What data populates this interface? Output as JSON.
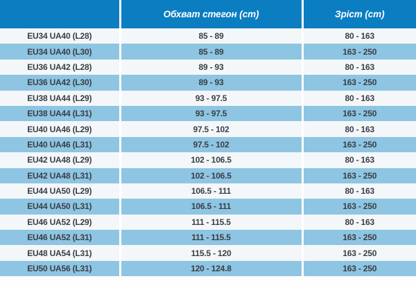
{
  "colors": {
    "header_bg": "#0b7dc1",
    "header_text": "#ffffff",
    "row_blue": "#8ec5e2",
    "row_white": "#f4f7f9",
    "text_dark": "#3a3e44",
    "separator": "#ffffff",
    "page_bg": "#fdfdfd"
  },
  "table": {
    "columns": [
      {
        "label": ""
      },
      {
        "label": "Обхват стегон (cm)"
      },
      {
        "label": "Зріст (cm)"
      }
    ],
    "rows": [
      {
        "size": "EU34 UA40 (L28)",
        "hips": "85 - 89",
        "height": "80 - 163"
      },
      {
        "size": "EU34 UA40 (L30)",
        "hips": "85 - 89",
        "height": "163 - 250"
      },
      {
        "size": "EU36 UA42 (L28)",
        "hips": "89 - 93",
        "height": "80 - 163"
      },
      {
        "size": "EU36 UA42 (L30)",
        "hips": "89 - 93",
        "height": "163 - 250"
      },
      {
        "size": "EU38 UA44 (L29)",
        "hips": "93 - 97.5",
        "height": "80 - 163"
      },
      {
        "size": "EU38 UA44 (L31)",
        "hips": "93 - 97.5",
        "height": "163 - 250"
      },
      {
        "size": "EU40 UA46 (L29)",
        "hips": "97.5 - 102",
        "height": "80 - 163"
      },
      {
        "size": "EU40 UA46 (L31)",
        "hips": "97.5 - 102",
        "height": "163 - 250"
      },
      {
        "size": "EU42 UA48 (L29)",
        "hips": "102 - 106.5",
        "height": "80 - 163"
      },
      {
        "size": "EU42 UA48 (L31)",
        "hips": "102 - 106.5",
        "height": "163 - 250"
      },
      {
        "size": "EU44 UA50 (L29)",
        "hips": "106.5 - 111",
        "height": "80 - 163"
      },
      {
        "size": "EU44 UA50 (L31)",
        "hips": "106.5 - 111",
        "height": "163 - 250"
      },
      {
        "size": "EU46 UA52 (L29)",
        "hips": "111 - 115.5",
        "height": "80 - 163"
      },
      {
        "size": "EU46 UA52 (L31)",
        "hips": "111 - 115.5",
        "height": "163 - 250"
      },
      {
        "size": "EU48 UA54 (L31)",
        "hips": "115.5 - 120",
        "height": "163 - 250"
      },
      {
        "size": "EU50 UA56 (L31)",
        "hips": "120 - 124.8",
        "height": "163 - 250"
      }
    ]
  }
}
